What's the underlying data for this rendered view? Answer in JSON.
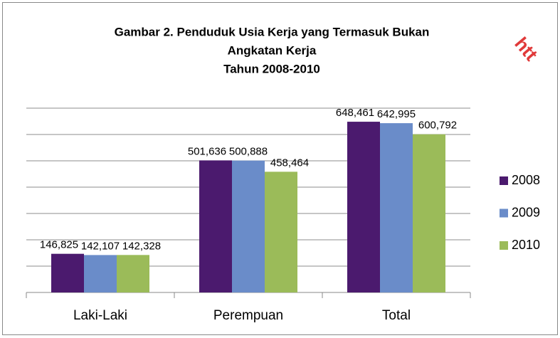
{
  "chart_data": {
    "type": "bar",
    "title": [
      "Gambar 2. Penduduk Usia Kerja yang Termasuk Bukan",
      "Angkatan Kerja",
      "Tahun 2008-2010"
    ],
    "categories": [
      "Laki-Laki",
      "Perempuan",
      "Total"
    ],
    "series": [
      {
        "name": "2008",
        "color": "#4b1a6e",
        "values": [
          146825,
          501636,
          648461
        ],
        "value_labels": [
          "146,825",
          "501,636",
          "648,461"
        ]
      },
      {
        "name": "2009",
        "color": "#6a8cc9",
        "values": [
          142107,
          500888,
          642995
        ],
        "value_labels": [
          "142,107",
          "500,888",
          "642,995"
        ]
      },
      {
        "name": "2010",
        "color": "#9bbb59",
        "values": [
          142328,
          458464,
          600792
        ],
        "value_labels": [
          "142,328",
          "458,464",
          "600,792"
        ]
      }
    ],
    "ylim": [
      0,
      700000
    ],
    "yticks": [
      0,
      100000,
      200000,
      300000,
      400000,
      500000,
      600000,
      700000
    ],
    "grid": true,
    "legend": "right",
    "watermark": "htt"
  }
}
